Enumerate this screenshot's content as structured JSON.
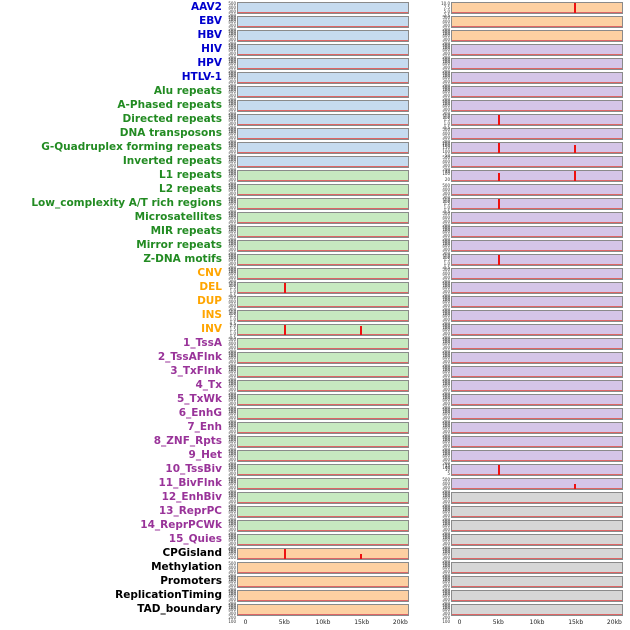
{
  "chart_data": {
    "type": "area",
    "description": "Panel of per-feature genomic signal tracks over a 0-20kb window; two columns of mini track plots with red signal spikes",
    "x_axis": {
      "ticklabels": [
        "0",
        "5kb",
        "10kb",
        "15kb",
        "20kb"
      ],
      "range_kb": [
        0,
        20
      ]
    },
    "default_yticks": [
      "500",
      "400",
      "300",
      "200",
      "100"
    ],
    "label_colors": {
      "virus": "#0000cd",
      "repeat": "#228b22",
      "sv": "#ffa500",
      "chromhmm": "#993399",
      "other": "#000000"
    },
    "panel_colors": {
      "blue": "#c6dbef",
      "green": "#c7e9c0",
      "orange": "#fdd0a2",
      "purple": "#d5c5e8",
      "gray": "#d6d6d6"
    },
    "spike_color": "#ee1111",
    "baseline_color": "#dd6666",
    "rows": [
      {
        "label": "AAV2",
        "group": "virus",
        "left": {
          "bg": "blue"
        },
        "right": {
          "bg": "orange",
          "yticks": [
            "10.0",
            "7.5",
            "5.0",
            "2.5"
          ],
          "spikes": [
            {
              "x_kb": 15,
              "height_frac": 1.0
            }
          ]
        }
      },
      {
        "label": "EBV",
        "group": "virus",
        "left": {
          "bg": "blue"
        },
        "right": {
          "bg": "orange"
        }
      },
      {
        "label": "HBV",
        "group": "virus",
        "left": {
          "bg": "blue"
        },
        "right": {
          "bg": "orange"
        }
      },
      {
        "label": "HIV",
        "group": "virus",
        "left": {
          "bg": "blue"
        },
        "right": {
          "bg": "purple"
        }
      },
      {
        "label": "HPV",
        "group": "virus",
        "left": {
          "bg": "blue"
        },
        "right": {
          "bg": "purple"
        }
      },
      {
        "label": "HTLV-1",
        "group": "virus",
        "left": {
          "bg": "blue"
        },
        "right": {
          "bg": "purple"
        }
      },
      {
        "label": "Alu repeats",
        "group": "repeat",
        "left": {
          "bg": "blue"
        },
        "right": {
          "bg": "purple"
        }
      },
      {
        "label": "A-Phased repeats",
        "group": "repeat",
        "left": {
          "bg": "blue"
        },
        "right": {
          "bg": "purple"
        }
      },
      {
        "label": "Directed repeats",
        "group": "repeat",
        "left": {
          "bg": "blue"
        },
        "right": {
          "bg": "purple",
          "yticks": [
            "2.0",
            "1.5",
            "1.0",
            "0.5"
          ],
          "spikes": [
            {
              "x_kb": 5,
              "height_frac": 1.0
            }
          ]
        }
      },
      {
        "label": "DNA transposons",
        "group": "repeat",
        "left": {
          "bg": "blue"
        },
        "right": {
          "bg": "purple"
        }
      },
      {
        "label": "G-Quadruplex forming repeats",
        "group": "repeat",
        "left": {
          "bg": "blue"
        },
        "right": {
          "bg": "purple",
          "yticks": [
            "200",
            "150",
            "100",
            "50"
          ],
          "spikes": [
            {
              "x_kb": 5,
              "height_frac": 1.0
            },
            {
              "x_kb": 15,
              "height_frac": 0.85
            }
          ]
        }
      },
      {
        "label": "Inverted repeats",
        "group": "repeat",
        "left": {
          "bg": "blue"
        },
        "right": {
          "bg": "purple"
        }
      },
      {
        "label": "L1 repeats",
        "group": "repeat",
        "left": {
          "bg": "green"
        },
        "right": {
          "bg": "purple",
          "yticks": [
            "40",
            "20"
          ],
          "spikes": [
            {
              "x_kb": 5,
              "height_frac": 0.85
            },
            {
              "x_kb": 15,
              "height_frac": 1.0
            }
          ]
        }
      },
      {
        "label": "L2 repeats",
        "group": "repeat",
        "left": {
          "bg": "green"
        },
        "right": {
          "bg": "purple"
        }
      },
      {
        "label": "Low_complexity A/T rich regions",
        "group": "repeat",
        "left": {
          "bg": "green"
        },
        "right": {
          "bg": "purple",
          "yticks": [
            "2.0",
            "1.5",
            "1.0",
            "0.5"
          ],
          "spikes": [
            {
              "x_kb": 5,
              "height_frac": 1.0
            }
          ]
        }
      },
      {
        "label": "Microsatellites",
        "group": "repeat",
        "left": {
          "bg": "green"
        },
        "right": {
          "bg": "purple"
        }
      },
      {
        "label": "MIR repeats",
        "group": "repeat",
        "left": {
          "bg": "green"
        },
        "right": {
          "bg": "purple"
        }
      },
      {
        "label": "Mirror repeats",
        "group": "repeat",
        "left": {
          "bg": "green"
        },
        "right": {
          "bg": "purple"
        }
      },
      {
        "label": "Z-DNA motifs",
        "group": "repeat",
        "left": {
          "bg": "green"
        },
        "right": {
          "bg": "purple",
          "yticks": [
            "2.0",
            "1.5",
            "1.0",
            "0.5"
          ],
          "spikes": [
            {
              "x_kb": 5,
              "height_frac": 1.0
            }
          ]
        }
      },
      {
        "label": "CNV",
        "group": "sv",
        "left": {
          "bg": "green"
        },
        "right": {
          "bg": "purple"
        }
      },
      {
        "label": "DEL",
        "group": "sv",
        "left": {
          "bg": "green",
          "yticks": [
            "2.0",
            "1.5",
            "1.0",
            "0.5"
          ],
          "spikes": [
            {
              "x_kb": 5,
              "height_frac": 1.0
            }
          ]
        },
        "right": {
          "bg": "purple"
        }
      },
      {
        "label": "DUP",
        "group": "sv",
        "left": {
          "bg": "green"
        },
        "right": {
          "bg": "purple"
        }
      },
      {
        "label": "INS",
        "group": "sv",
        "left": {
          "bg": "green",
          "yticks": [
            "2.0",
            "1.5",
            "1.0",
            "0.5"
          ]
        },
        "right": {
          "bg": "purple"
        }
      },
      {
        "label": "INV",
        "group": "sv",
        "left": {
          "bg": "green",
          "yticks": [
            "2.0",
            "1.5",
            "1.0",
            "0.5"
          ],
          "spikes": [
            {
              "x_kb": 5,
              "height_frac": 1.0
            },
            {
              "x_kb": 15,
              "height_frac": 0.95
            }
          ]
        },
        "right": {
          "bg": "purple"
        }
      },
      {
        "label": "1_TssA",
        "group": "chromhmm",
        "left": {
          "bg": "green"
        },
        "right": {
          "bg": "purple"
        }
      },
      {
        "label": "2_TssAFlnk",
        "group": "chromhmm",
        "left": {
          "bg": "green"
        },
        "right": {
          "bg": "purple"
        }
      },
      {
        "label": "3_TxFlnk",
        "group": "chromhmm",
        "left": {
          "bg": "green"
        },
        "right": {
          "bg": "purple"
        }
      },
      {
        "label": "4_Tx",
        "group": "chromhmm",
        "left": {
          "bg": "green"
        },
        "right": {
          "bg": "purple"
        }
      },
      {
        "label": "5_TxWk",
        "group": "chromhmm",
        "left": {
          "bg": "green"
        },
        "right": {
          "bg": "purple"
        }
      },
      {
        "label": "6_EnhG",
        "group": "chromhmm",
        "left": {
          "bg": "green"
        },
        "right": {
          "bg": "purple"
        }
      },
      {
        "label": "7_Enh",
        "group": "chromhmm",
        "left": {
          "bg": "green"
        },
        "right": {
          "bg": "purple"
        }
      },
      {
        "label": "8_ZNF_Rpts",
        "group": "chromhmm",
        "left": {
          "bg": "green"
        },
        "right": {
          "bg": "purple"
        }
      },
      {
        "label": "9_Het",
        "group": "chromhmm",
        "left": {
          "bg": "green"
        },
        "right": {
          "bg": "purple"
        }
      },
      {
        "label": "10_TssBiv",
        "group": "chromhmm",
        "left": {
          "bg": "green"
        },
        "right": {
          "bg": "purple",
          "yticks": [
            "15",
            "10",
            "5"
          ],
          "spikes": [
            {
              "x_kb": 5,
              "height_frac": 1.0
            }
          ]
        }
      },
      {
        "label": "11_BivFlnk",
        "group": "chromhmm",
        "left": {
          "bg": "green"
        },
        "right": {
          "bg": "purple",
          "spikes": [
            {
              "x_kb": 15,
              "height_frac": 0.5
            }
          ]
        }
      },
      {
        "label": "12_EnhBiv",
        "group": "chromhmm",
        "left": {
          "bg": "green"
        },
        "right": {
          "bg": "gray"
        }
      },
      {
        "label": "13_ReprPC",
        "group": "chromhmm",
        "left": {
          "bg": "green"
        },
        "right": {
          "bg": "gray"
        }
      },
      {
        "label": "14_ReprPCWk",
        "group": "chromhmm",
        "left": {
          "bg": "green"
        },
        "right": {
          "bg": "gray"
        }
      },
      {
        "label": "15_Quies",
        "group": "chromhmm",
        "left": {
          "bg": "green"
        },
        "right": {
          "bg": "gray"
        }
      },
      {
        "label": "CPGisland",
        "group": "other",
        "left": {
          "bg": "orange",
          "yticks": [
            "600",
            "400",
            "200"
          ],
          "spikes": [
            {
              "x_kb": 5,
              "height_frac": 1.0
            },
            {
              "x_kb": 15,
              "height_frac": 0.55
            }
          ]
        },
        "right": {
          "bg": "gray"
        }
      },
      {
        "label": "Methylation",
        "group": "other",
        "left": {
          "bg": "orange"
        },
        "right": {
          "bg": "gray"
        }
      },
      {
        "label": "Promoters",
        "group": "other",
        "left": {
          "bg": "orange"
        },
        "right": {
          "bg": "gray"
        }
      },
      {
        "label": "ReplicationTiming",
        "group": "other",
        "left": {
          "bg": "orange"
        },
        "right": {
          "bg": "gray"
        }
      },
      {
        "label": "TAD_boundary",
        "group": "other",
        "left": {
          "bg": "orange"
        },
        "right": {
          "bg": "gray"
        }
      }
    ]
  }
}
